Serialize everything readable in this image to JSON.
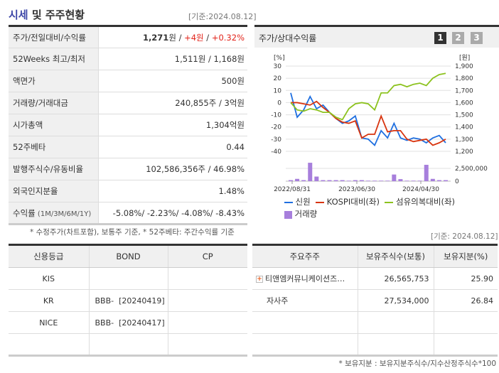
{
  "header": {
    "title_highlight": "시세",
    "title_rest": " 및 주주현황",
    "date": "[기준:2024.08.12]"
  },
  "price_table": [
    {
      "label": "주가/전일대비/수익률",
      "price": "1,271",
      "price_unit": "원 / ",
      "change": "+4원",
      "sep": " / ",
      "rate": "+0.32%"
    },
    {
      "label": "52Weeks 최고/최저",
      "value": "1,511원 / 1,168원"
    },
    {
      "label": "액면가",
      "value": "500원"
    },
    {
      "label": "거래량/거래대금",
      "value": "240,855주 / 3억원"
    },
    {
      "label": "시가총액",
      "value": "1,304억원"
    },
    {
      "label": "52주베타",
      "value": "0.44"
    },
    {
      "label": "발행주식수/유동비율",
      "value": "102,586,356주 / 46.98%"
    },
    {
      "label": "외국인지분율",
      "value": "1.48%"
    },
    {
      "label": "수익률",
      "label_sub": " (1M/3M/6M/1Y)",
      "value": "-5.08%/ -2.23%/ -4.08%/ -8.43%"
    }
  ],
  "price_footnote": "* 수정주가(차트포함), 보통주 기준, * 52주베타: 주간수익률 기준",
  "chart_panel": {
    "title": "주가/상대수익률",
    "pages": [
      "1",
      "2",
      "3"
    ],
    "active_page": "1"
  },
  "chart_data": {
    "type": "line",
    "left_axis_label": "[%]",
    "right_axis_label": "[원]",
    "left_ylim": [
      -40,
      30
    ],
    "left_ticks": [
      "30",
      "20",
      "10",
      "0",
      "-10",
      "-20",
      "-30",
      "-40"
    ],
    "right_ylim": [
      1200,
      1900
    ],
    "right_ticks": [
      "1,900",
      "1,800",
      "1,700",
      "1,600",
      "1,500",
      "1,400",
      "1,300",
      "1,200"
    ],
    "volume_ticks": [
      "2,500,000",
      "0"
    ],
    "x_ticks": [
      "2022/08/31",
      "2023/06/30",
      "2024/04/30"
    ],
    "grid": true,
    "legend_position": "bottom",
    "series": [
      {
        "name": "신원",
        "color": "#1f6fe0",
        "values": [
          8,
          -12,
          -6,
          5,
          -5,
          -2,
          -8,
          -13,
          -17,
          -15,
          -11,
          -29,
          -30,
          -35,
          -23,
          -29,
          -17,
          -29,
          -31,
          -29,
          -30,
          -33,
          -29,
          -27,
          -33
        ]
      },
      {
        "name": "KOSPI대비(좌)",
        "color": "#d8340f",
        "values": [
          0,
          0,
          -1,
          -2,
          1,
          -4,
          -8,
          -13,
          -16,
          -17,
          -15,
          -29,
          -26,
          -26,
          -11,
          -24,
          -23,
          -23,
          -30,
          -32,
          -31,
          -30,
          -35,
          -33,
          -30
        ]
      },
      {
        "name": "섬유의복대비(좌)",
        "color": "#8cc21e",
        "values": [
          0,
          -6,
          -7,
          -5,
          -6,
          -8,
          -8,
          -12,
          -14,
          -5,
          -1,
          0,
          -1,
          -6,
          8,
          8,
          14,
          15,
          13,
          15,
          16,
          14,
          20,
          23,
          24
        ]
      }
    ],
    "volume": {
      "name": "거래량",
      "color": "#a77fdc",
      "values": [
        200000,
        450000,
        200000,
        3600000,
        900000,
        200000,
        200000,
        200000,
        200000,
        100000,
        200000,
        200000,
        100000,
        100000,
        100000,
        100000,
        1300000,
        400000,
        100000,
        100000,
        100000,
        3200000,
        450000,
        200000,
        200000
      ]
    }
  },
  "credit_table": {
    "headers": [
      "신용등급",
      "BOND",
      "CP"
    ],
    "rows": [
      [
        "KIS",
        "",
        ""
      ],
      [
        "KR",
        "BBB-  [20240419]",
        ""
      ],
      [
        "NICE",
        "BBB-  [20240417]",
        ""
      ],
      [
        "",
        "",
        ""
      ]
    ]
  },
  "holders": {
    "date": "[기준: 2024.08.12]",
    "headers": [
      "주요주주",
      "보유주식수(보통)",
      "보유지분(%)"
    ],
    "rows": [
      [
        "티앤엠커뮤니케이션즈…",
        "26,565,753",
        "25.90"
      ],
      [
        "자사주",
        "27,534,000",
        "26.84"
      ],
      [
        "",
        "",
        ""
      ],
      [
        "",
        "",
        ""
      ]
    ],
    "footnote": "* 보유지분 : 보유지분주식수/지수산정주식수*100"
  }
}
